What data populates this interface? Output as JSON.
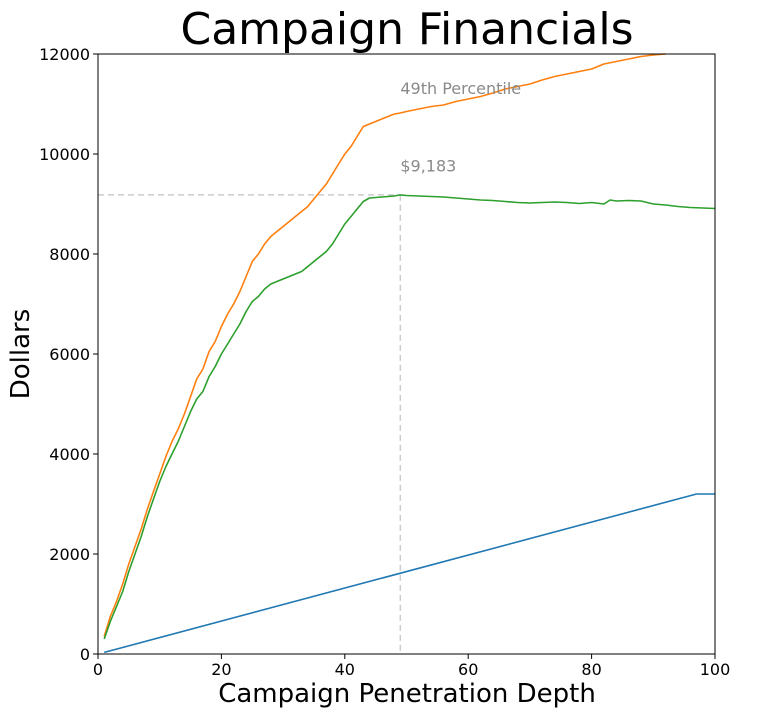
{
  "chart_data": {
    "type": "line",
    "title": "Campaign Financials",
    "xlabel": "Campaign Penetration Depth",
    "ylabel": "Dollars",
    "xlim": [
      0,
      100
    ],
    "ylim": [
      0,
      12000
    ],
    "x_ticks": [
      0,
      20,
      40,
      60,
      80,
      100
    ],
    "y_ticks": [
      0,
      2000,
      4000,
      6000,
      8000,
      10000,
      12000
    ],
    "x_tick_labels": [
      "0",
      "20",
      "40",
      "60",
      "80",
      "100"
    ],
    "y_tick_labels": [
      "0",
      "2000",
      "4000",
      "6000",
      "8000",
      "10000",
      "12000"
    ],
    "grid": false,
    "legend": "none",
    "series": [
      {
        "color": "#1f77b4",
        "x": [
          1,
          97,
          100
        ],
        "y": [
          33,
          3201,
          3201
        ]
      },
      {
        "color": "#ff7f0e",
        "x": [
          1,
          2,
          3,
          4,
          5,
          6,
          7,
          8,
          9,
          10,
          11,
          12,
          13,
          14,
          15,
          16,
          17,
          18,
          19,
          20,
          21,
          22,
          23,
          24,
          25,
          26,
          27,
          28,
          29,
          30,
          31,
          32,
          33,
          34,
          35,
          36,
          37,
          38,
          39,
          40,
          41,
          42,
          43,
          44,
          45,
          46,
          47,
          48,
          49,
          50,
          52,
          54,
          56,
          58,
          60,
          62,
          64,
          66,
          68,
          70,
          72,
          74,
          76,
          78,
          80,
          82,
          84,
          86,
          88,
          90,
          92
        ],
        "y": [
          350,
          750,
          1050,
          1400,
          1800,
          2150,
          2500,
          2900,
          3250,
          3600,
          3950,
          4250,
          4500,
          4800,
          5150,
          5500,
          5700,
          6050,
          6250,
          6550,
          6800,
          7000,
          7250,
          7550,
          7850,
          8000,
          8200,
          8350,
          8450,
          8550,
          8650,
          8750,
          8850,
          8950,
          9100,
          9250,
          9400,
          9600,
          9800,
          10000,
          10150,
          10350,
          10550,
          10600,
          10650,
          10700,
          10750,
          10800,
          10820,
          10850,
          10900,
          10950,
          10980,
          11050,
          11100,
          11150,
          11220,
          11300,
          11350,
          11400,
          11480,
          11550,
          11600,
          11650,
          11700,
          11800,
          11850,
          11900,
          11950,
          11980,
          12000
        ]
      },
      {
        "color": "#2ca02c",
        "x": [
          1,
          2,
          3,
          4,
          5,
          6,
          7,
          8,
          9,
          10,
          11,
          12,
          13,
          14,
          15,
          16,
          17,
          18,
          19,
          20,
          21,
          22,
          23,
          24,
          25,
          26,
          27,
          28,
          29,
          30,
          31,
          32,
          33,
          34,
          35,
          36,
          37,
          38,
          39,
          40,
          41,
          42,
          43,
          44,
          45,
          46,
          47,
          48,
          49,
          50,
          52,
          54,
          56,
          58,
          60,
          62,
          64,
          66,
          68,
          70,
          72,
          74,
          76,
          78,
          80,
          82,
          83,
          84,
          86,
          88,
          90,
          92,
          94,
          96,
          98,
          100
        ],
        "y": [
          300,
          650,
          950,
          1250,
          1650,
          2000,
          2350,
          2750,
          3100,
          3450,
          3750,
          4000,
          4250,
          4550,
          4850,
          5100,
          5250,
          5550,
          5750,
          6000,
          6200,
          6400,
          6600,
          6850,
          7050,
          7150,
          7300,
          7400,
          7450,
          7500,
          7550,
          7600,
          7650,
          7750,
          7850,
          7950,
          8050,
          8200,
          8400,
          8600,
          8750,
          8900,
          9050,
          9120,
          9130,
          9140,
          9150,
          9160,
          9183,
          9170,
          9160,
          9150,
          9140,
          9120,
          9100,
          9080,
          9070,
          9050,
          9030,
          9020,
          9030,
          9040,
          9030,
          9010,
          9030,
          9000,
          9080,
          9060,
          9070,
          9060,
          9000,
          8980,
          8950,
          8930,
          8920,
          8910
        ]
      }
    ],
    "annotations": [
      {
        "text": "49th Percentile",
        "x": 49,
        "y": 11200
      },
      {
        "text": "$9,183",
        "x": 49,
        "y": 9650
      }
    ],
    "reference_lines": {
      "color": "#cccccc",
      "vertical_x": 49,
      "horizontal_y": 9183
    }
  }
}
